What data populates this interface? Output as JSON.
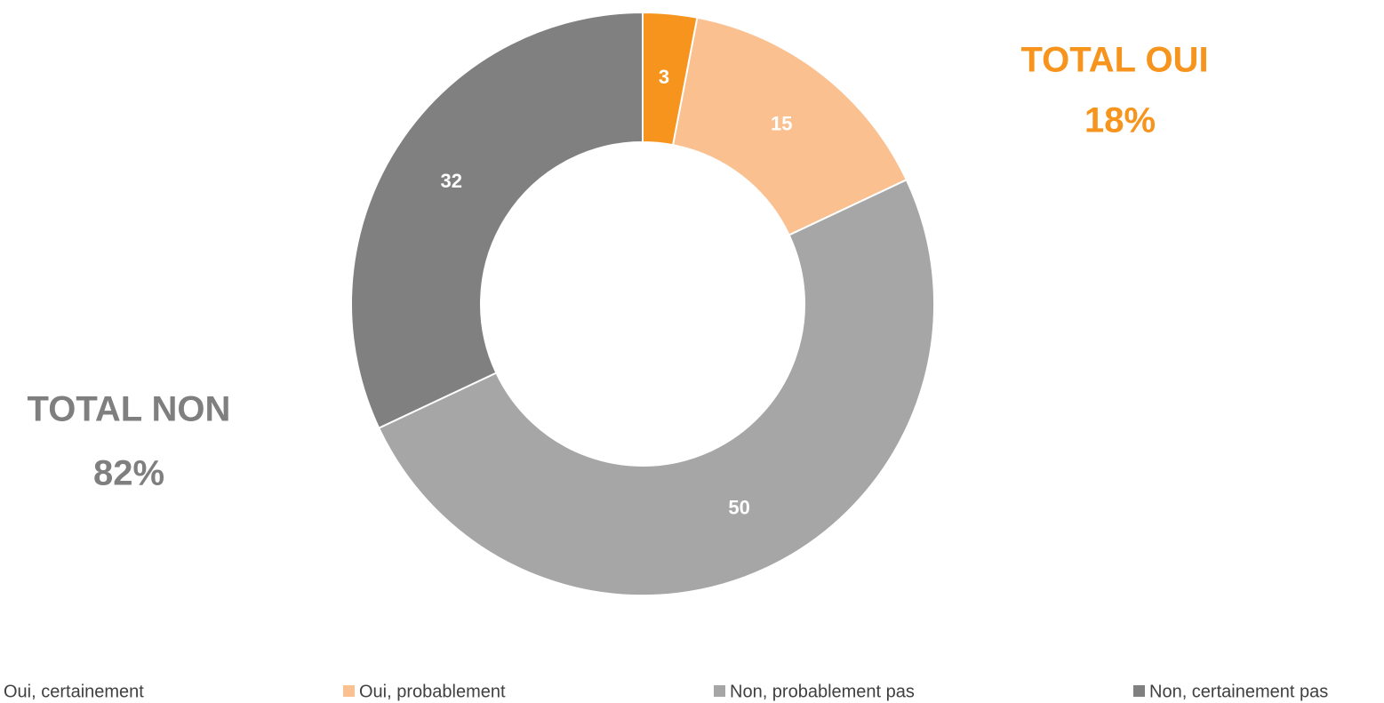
{
  "chart_data": {
    "type": "donut",
    "categories": [
      "Oui, certainement",
      "Oui, probablement",
      "Non, probablement pas",
      "Non, certainement pas"
    ],
    "values": [
      3,
      15,
      50,
      32
    ],
    "colors": [
      "#f7941d",
      "#fac090",
      "#a6a6a6",
      "#808080"
    ],
    "legend": "bottom",
    "annotations": [
      {
        "text": "TOTAL OUI",
        "color": "#f7941d"
      },
      {
        "text": "18%",
        "color": "#f7941d"
      },
      {
        "text": "TOTAL NON",
        "color": "#7f7f7f"
      },
      {
        "text": "82%",
        "color": "#7f7f7f"
      }
    ]
  }
}
